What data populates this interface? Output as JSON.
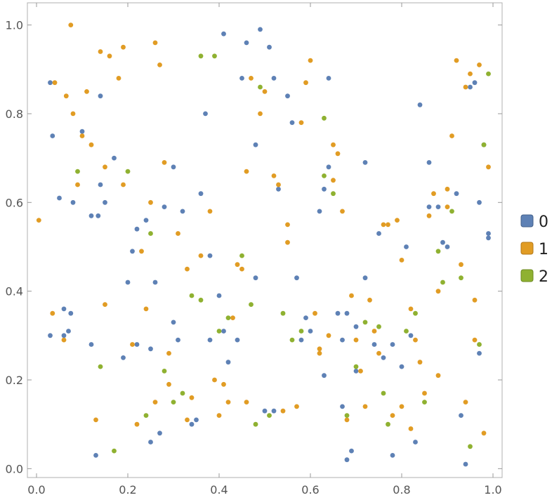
{
  "chart_data": {
    "type": "scatter",
    "title": "",
    "xlabel": "",
    "ylabel": "",
    "xlim": [
      -0.02,
      1.02
    ],
    "ylim": [
      -0.02,
      1.05
    ],
    "xticks": [
      "0.0",
      "0.2",
      "0.4",
      "0.6",
      "0.8",
      "1.0"
    ],
    "xtick_values": [
      0.0,
      0.2,
      0.4,
      0.6,
      0.8,
      1.0
    ],
    "yticks": [
      "0.0",
      "0.2",
      "0.4",
      "0.6",
      "0.8",
      "1.0"
    ],
    "ytick_values": [
      0.0,
      0.2,
      0.4,
      0.6,
      0.8,
      1.0
    ],
    "grid": false,
    "legend_position": "right",
    "series": [
      {
        "name": "0",
        "color": "#5e81b5",
        "x": [
          0.03,
          0.035,
          0.05,
          0.06,
          0.07,
          0.075,
          0.12,
          0.13,
          0.135,
          0.14,
          0.15,
          0.19,
          0.2,
          0.21,
          0.22,
          0.24,
          0.25,
          0.26,
          0.27,
          0.28,
          0.3,
          0.31,
          0.32,
          0.35,
          0.36,
          0.37,
          0.38,
          0.4,
          0.41,
          0.42,
          0.44,
          0.46,
          0.48,
          0.49,
          0.5,
          0.51,
          0.52,
          0.55,
          0.56,
          0.58,
          0.6,
          0.62,
          0.63,
          0.64,
          0.66,
          0.67,
          0.68,
          0.69,
          0.7,
          0.72,
          0.74,
          0.76,
          0.78,
          0.8,
          0.82,
          0.84,
          0.86,
          0.88,
          0.9,
          0.92,
          0.94,
          0.96,
          0.97,
          0.98,
          0.99,
          0.03,
          0.06,
          0.08,
          0.1,
          0.12,
          0.14,
          0.17,
          0.22,
          0.25,
          0.3,
          0.34,
          0.38,
          0.41,
          0.45,
          0.52,
          0.57,
          0.63,
          0.67,
          0.68,
          0.72,
          0.78,
          0.81,
          0.86,
          0.93,
          0.95,
          0.97,
          0.99,
          0.48,
          0.53,
          0.59,
          0.64,
          0.7,
          0.75,
          0.83,
          0.89
        ],
        "y": [
          0.87,
          0.75,
          0.61,
          0.36,
          0.31,
          0.35,
          0.28,
          0.03,
          0.57,
          0.64,
          0.6,
          0.25,
          0.42,
          0.49,
          0.28,
          0.56,
          0.06,
          0.42,
          0.08,
          0.59,
          0.33,
          0.29,
          0.58,
          0.11,
          0.62,
          0.8,
          0.29,
          0.39,
          0.98,
          0.24,
          0.29,
          0.96,
          0.43,
          0.99,
          0.13,
          0.95,
          0.88,
          0.84,
          0.78,
          0.29,
          0.31,
          0.58,
          0.21,
          0.88,
          0.35,
          0.29,
          0.02,
          0.04,
          0.32,
          0.69,
          0.28,
          0.25,
          0.03,
          0.23,
          0.3,
          0.82,
          0.69,
          0.59,
          0.5,
          0.62,
          0.01,
          0.87,
          0.6,
          0.73,
          0.53,
          0.3,
          0.3,
          0.6,
          0.76,
          0.57,
          0.84,
          0.7,
          0.54,
          0.27,
          0.68,
          0.1,
          0.48,
          0.31,
          0.88,
          0.13,
          0.43,
          0.63,
          0.14,
          0.35,
          0.43,
          0.28,
          0.5,
          0.59,
          0.12,
          0.86,
          0.26,
          0.52,
          0.73,
          0.63,
          0.34,
          0.68,
          0.22,
          0.53,
          0.06,
          0.51
        ]
      },
      {
        "name": "1",
        "color": "#e19c24",
        "x": [
          0.005,
          0.04,
          0.065,
          0.075,
          0.09,
          0.11,
          0.13,
          0.14,
          0.16,
          0.18,
          0.19,
          0.21,
          0.23,
          0.26,
          0.27,
          0.29,
          0.31,
          0.33,
          0.36,
          0.39,
          0.42,
          0.44,
          0.46,
          0.47,
          0.49,
          0.5,
          0.53,
          0.55,
          0.57,
          0.59,
          0.61,
          0.62,
          0.64,
          0.65,
          0.67,
          0.69,
          0.71,
          0.73,
          0.76,
          0.78,
          0.8,
          0.82,
          0.84,
          0.86,
          0.88,
          0.9,
          0.92,
          0.94,
          0.95,
          0.97,
          0.99,
          0.035,
          0.06,
          0.1,
          0.12,
          0.15,
          0.19,
          0.24,
          0.26,
          0.29,
          0.33,
          0.38,
          0.4,
          0.43,
          0.46,
          0.54,
          0.6,
          0.65,
          0.7,
          0.74,
          0.77,
          0.8,
          0.85,
          0.88,
          0.91,
          0.94,
          0.96,
          0.08,
          0.22,
          0.28,
          0.41,
          0.52,
          0.58,
          0.62,
          0.66,
          0.72,
          0.79,
          0.83,
          0.9,
          0.93,
          0.98,
          0.15,
          0.25,
          0.34,
          0.45,
          0.55,
          0.68,
          0.75,
          0.82,
          0.87,
          0.96
        ],
        "y": [
          0.56,
          0.87,
          0.84,
          1.0,
          0.64,
          0.85,
          0.11,
          0.94,
          0.93,
          0.88,
          0.95,
          0.28,
          0.49,
          0.96,
          0.91,
          0.26,
          0.53,
          0.45,
          0.48,
          0.2,
          0.15,
          0.46,
          0.15,
          0.88,
          0.8,
          0.85,
          0.64,
          0.55,
          0.14,
          0.87,
          0.35,
          0.27,
          0.3,
          0.73,
          0.58,
          0.39,
          0.22,
          0.38,
          0.55,
          0.12,
          0.47,
          0.36,
          0.24,
          0.57,
          0.4,
          0.63,
          0.92,
          0.86,
          0.89,
          0.91,
          0.68,
          0.35,
          0.29,
          0.75,
          0.73,
          0.37,
          0.64,
          0.36,
          0.15,
          0.19,
          0.11,
          0.58,
          0.12,
          0.34,
          0.67,
          0.13,
          0.92,
          0.65,
          0.29,
          0.31,
          0.55,
          0.14,
          0.17,
          0.21,
          0.75,
          0.15,
          0.38,
          0.8,
          0.1,
          0.69,
          0.19,
          0.66,
          0.78,
          0.26,
          0.71,
          0.14,
          0.56,
          0.29,
          0.59,
          0.46,
          0.08,
          0.68,
          0.6,
          0.16,
          0.45,
          0.51,
          0.11,
          0.26,
          0.09,
          0.62,
          0.29
        ]
      },
      {
        "name": "2",
        "color": "#8fb131",
        "x": [
          0.09,
          0.14,
          0.17,
          0.2,
          0.24,
          0.28,
          0.3,
          0.32,
          0.34,
          0.36,
          0.39,
          0.4,
          0.42,
          0.45,
          0.47,
          0.49,
          0.51,
          0.54,
          0.56,
          0.58,
          0.63,
          0.65,
          0.7,
          0.72,
          0.75,
          0.77,
          0.81,
          0.83,
          0.85,
          0.89,
          0.91,
          0.93,
          0.95,
          0.97,
          0.98,
          0.99,
          0.25,
          0.36,
          0.48,
          0.63,
          0.68,
          0.76,
          0.88
        ],
        "y": [
          0.67,
          0.23,
          0.04,
          0.67,
          0.12,
          0.22,
          0.15,
          0.17,
          0.39,
          0.93,
          0.93,
          0.31,
          0.34,
          0.48,
          0.37,
          0.86,
          0.12,
          0.35,
          0.29,
          0.31,
          0.66,
          0.62,
          0.23,
          0.33,
          0.32,
          0.1,
          0.31,
          0.35,
          0.15,
          0.42,
          0.58,
          0.43,
          0.05,
          0.28,
          0.73,
          0.89,
          0.53,
          0.38,
          0.1,
          0.79,
          0.12,
          0.17,
          0.49
        ]
      }
    ]
  }
}
